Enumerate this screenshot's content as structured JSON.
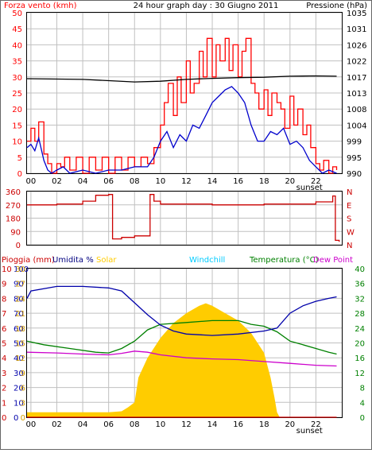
{
  "header": {
    "left_label": "Forza vento (kmh)",
    "title": "24 hour graph day : 30 Giugno 2011",
    "right_label": "Pressione (hPa)"
  },
  "lower_header": {
    "rain": "Pioggia (mm)",
    "humidity": "Umidita %",
    "solar": "Solar",
    "windchill": "Windchill",
    "temperature": "Temperatura (°C)",
    "dewpoint": "Dew Point"
  },
  "colors": {
    "wind": "#ff0000",
    "gust": "#0000cc",
    "pressure": "#000000",
    "direction": "#cc0000",
    "rain": "#cc0000",
    "humidity": "#0000aa",
    "solar": "#ffcc00",
    "windchill": "#00ccff",
    "temperature": "#008000",
    "dewpoint": "#cc00cc",
    "grid": "#c0c0c0"
  },
  "x_ticks": [
    "00",
    "02",
    "04",
    "06",
    "08",
    "10",
    "12",
    "14",
    "16",
    "18",
    "20",
    "22"
  ],
  "sunset_label": "sunset",
  "chart_data": [
    {
      "type": "line",
      "name": "wind",
      "x_range_hours": [
        -0.3,
        24.0
      ],
      "left_axis": {
        "label": "Forza vento (kmh)",
        "ticks": [
          0,
          5,
          10,
          15,
          20,
          25,
          30,
          35,
          40,
          45,
          50
        ],
        "range": [
          0,
          50
        ]
      },
      "right_axis": {
        "label": "Pressione (hPa)",
        "ticks": [
          990,
          995,
          999,
          1004,
          1008,
          1013,
          1017,
          1022,
          1026,
          1031,
          1035
        ],
        "range": [
          990,
          1035
        ]
      },
      "series": [
        {
          "name": "Forza vento (kmh)",
          "axis": "left",
          "points": [
            [
              -0.3,
              10
            ],
            [
              0,
              14
            ],
            [
              0.3,
              10
            ],
            [
              0.6,
              16
            ],
            [
              1,
              6
            ],
            [
              1.3,
              3
            ],
            [
              1.6,
              0
            ],
            [
              2,
              3
            ],
            [
              2.3,
              2
            ],
            [
              2.6,
              5
            ],
            [
              3,
              1
            ],
            [
              3.5,
              5
            ],
            [
              4,
              0
            ],
            [
              4.5,
              5
            ],
            [
              5,
              1
            ],
            [
              5.5,
              5
            ],
            [
              6,
              0
            ],
            [
              6.5,
              5
            ],
            [
              7,
              1
            ],
            [
              7.5,
              5
            ],
            [
              8,
              2
            ],
            [
              8.5,
              5
            ],
            [
              9,
              3
            ],
            [
              9.5,
              8
            ],
            [
              10,
              15
            ],
            [
              10.3,
              22
            ],
            [
              10.6,
              28
            ],
            [
              11,
              18
            ],
            [
              11.3,
              30
            ],
            [
              11.6,
              22
            ],
            [
              12,
              35
            ],
            [
              12.3,
              25
            ],
            [
              12.6,
              28
            ],
            [
              13,
              38
            ],
            [
              13.3,
              30
            ],
            [
              13.6,
              42
            ],
            [
              14,
              30
            ],
            [
              14.3,
              40
            ],
            [
              14.6,
              35
            ],
            [
              15,
              42
            ],
            [
              15.3,
              32
            ],
            [
              15.6,
              40
            ],
            [
              16,
              30
            ],
            [
              16.3,
              38
            ],
            [
              16.6,
              42
            ],
            [
              17,
              28
            ],
            [
              17.3,
              25
            ],
            [
              17.6,
              20
            ],
            [
              18,
              26
            ],
            [
              18.3,
              18
            ],
            [
              18.6,
              25
            ],
            [
              19,
              22
            ],
            [
              19.3,
              20
            ],
            [
              19.6,
              14
            ],
            [
              20,
              24
            ],
            [
              20.3,
              15
            ],
            [
              20.6,
              20
            ],
            [
              21,
              12
            ],
            [
              21.3,
              15
            ],
            [
              21.6,
              8
            ],
            [
              22,
              3
            ],
            [
              22.3,
              1
            ],
            [
              22.6,
              4
            ],
            [
              23,
              0
            ],
            [
              23.3,
              2
            ],
            [
              23.6,
              1
            ]
          ]
        },
        {
          "name": "Raffica",
          "axis": "left",
          "points": [
            [
              -0.3,
              8
            ],
            [
              0,
              9
            ],
            [
              0.3,
              7
            ],
            [
              0.6,
              11
            ],
            [
              1,
              4
            ],
            [
              1.3,
              1
            ],
            [
              1.6,
              0
            ],
            [
              2,
              1
            ],
            [
              2.5,
              2
            ],
            [
              3,
              0
            ],
            [
              4,
              1
            ],
            [
              5,
              0
            ],
            [
              6,
              1
            ],
            [
              7,
              1
            ],
            [
              8,
              2
            ],
            [
              9,
              2
            ],
            [
              9.5,
              5
            ],
            [
              10,
              10
            ],
            [
              10.5,
              13
            ],
            [
              11,
              8
            ],
            [
              11.5,
              12
            ],
            [
              12,
              10
            ],
            [
              12.5,
              15
            ],
            [
              13,
              14
            ],
            [
              13.5,
              18
            ],
            [
              14,
              22
            ],
            [
              14.5,
              24
            ],
            [
              15,
              26
            ],
            [
              15.5,
              27
            ],
            [
              16,
              25
            ],
            [
              16.5,
              22
            ],
            [
              17,
              15
            ],
            [
              17.5,
              10
            ],
            [
              18,
              10
            ],
            [
              18.5,
              13
            ],
            [
              19,
              12
            ],
            [
              19.5,
              14
            ],
            [
              20,
              9
            ],
            [
              20.5,
              10
            ],
            [
              21,
              8
            ],
            [
              21.5,
              4
            ],
            [
              22,
              2
            ],
            [
              22.5,
              0
            ],
            [
              23,
              1
            ],
            [
              23.6,
              0
            ]
          ]
        },
        {
          "name": "Pressione (hPa)",
          "axis": "right",
          "points": [
            [
              -0.3,
              1016.5
            ],
            [
              4,
              1016.3
            ],
            [
              8,
              1015.6
            ],
            [
              10,
              1015.8
            ],
            [
              12,
              1016.3
            ],
            [
              14,
              1016.6
            ],
            [
              16,
              1016.8
            ],
            [
              18,
              1016.9
            ],
            [
              20,
              1017.2
            ],
            [
              22,
              1017.3
            ],
            [
              23.6,
              1017.2
            ]
          ]
        }
      ]
    },
    {
      "type": "line",
      "name": "wind_direction",
      "left_axis": {
        "ticks": [
          0,
          90,
          180,
          270,
          360
        ],
        "range": [
          0,
          360
        ]
      },
      "right_axis": {
        "ticks": [
          "N",
          "W",
          "S",
          "E",
          "N"
        ]
      },
      "series": [
        {
          "name": "Direzione",
          "points": [
            [
              -0.3,
              270
            ],
            [
              2,
              275
            ],
            [
              4,
              295
            ],
            [
              5,
              335
            ],
            [
              6,
              340
            ],
            [
              6.3,
              40
            ],
            [
              7,
              50
            ],
            [
              8,
              60
            ],
            [
              9,
              60
            ],
            [
              9.2,
              340
            ],
            [
              9.5,
              295
            ],
            [
              10,
              275
            ],
            [
              14,
              270
            ],
            [
              18,
              275
            ],
            [
              22,
              290
            ],
            [
              23.3,
              330
            ],
            [
              23.5,
              30
            ],
            [
              23.8,
              20
            ]
          ]
        }
      ]
    },
    {
      "type": "line",
      "name": "climate",
      "axes": {
        "rain": {
          "label": "Pioggia (mm)",
          "ticks": [
            0,
            1,
            2,
            3,
            4,
            5,
            6,
            7,
            8,
            9,
            10
          ],
          "range": [
            0,
            10
          ]
        },
        "humidity": {
          "label": "Umidita %",
          "ticks": [
            0,
            10,
            20,
            30,
            40,
            50,
            60,
            70,
            80,
            90,
            100
          ],
          "range": [
            0,
            100
          ]
        },
        "solar": {
          "label": "Solar",
          "ticks": [
            0,
            3,
            6,
            9,
            12,
            15,
            18,
            21,
            24,
            27,
            30
          ],
          "range": [
            0,
            30
          ]
        },
        "temperature": {
          "label": "Temperatura (°C)",
          "ticks": [
            0,
            4,
            8,
            12,
            16,
            20,
            24,
            28,
            32,
            36,
            40
          ],
          "range": [
            0,
            40
          ]
        }
      },
      "series": [
        {
          "name": "Umidita %",
          "axis": "humidity",
          "points": [
            [
              -0.3,
              80
            ],
            [
              0,
              85
            ],
            [
              2,
              88
            ],
            [
              4,
              88
            ],
            [
              6,
              87
            ],
            [
              7,
              85
            ],
            [
              8,
              77
            ],
            [
              9,
              69
            ],
            [
              10,
              62
            ],
            [
              11,
              58
            ],
            [
              12,
              56
            ],
            [
              14,
              55
            ],
            [
              16,
              56
            ],
            [
              18,
              58
            ],
            [
              19,
              60
            ],
            [
              20,
              70
            ],
            [
              21,
              75
            ],
            [
              22,
              78
            ],
            [
              23,
              80
            ],
            [
              23.6,
              81
            ]
          ]
        },
        {
          "name": "Temperatura (°C)",
          "axis": "temperature",
          "points": [
            [
              -0.3,
              20.5
            ],
            [
              1,
              19.5
            ],
            [
              3,
              18.5
            ],
            [
              5,
              17.5
            ],
            [
              6,
              17.3
            ],
            [
              7,
              18.5
            ],
            [
              8,
              20.5
            ],
            [
              9,
              23.5
            ],
            [
              10,
              25
            ],
            [
              12,
              25.5
            ],
            [
              14,
              26
            ],
            [
              16,
              26
            ],
            [
              17,
              25
            ],
            [
              18,
              24.5
            ],
            [
              19,
              23
            ],
            [
              20,
              20.5
            ],
            [
              21,
              19.5
            ],
            [
              22,
              18.5
            ],
            [
              23,
              17.5
            ],
            [
              23.6,
              17
            ]
          ]
        },
        {
          "name": "Dew Point",
          "axis": "temperature",
          "points": [
            [
              -0.3,
              17.5
            ],
            [
              2,
              17.3
            ],
            [
              4,
              17
            ],
            [
              6,
              16.8
            ],
            [
              7,
              17.2
            ],
            [
              8,
              17.8
            ],
            [
              9,
              17.5
            ],
            [
              10,
              16.8
            ],
            [
              12,
              16
            ],
            [
              14,
              15.7
            ],
            [
              16,
              15.5
            ],
            [
              18,
              15
            ],
            [
              20,
              14.5
            ],
            [
              22,
              14
            ],
            [
              23.6,
              13.8
            ]
          ]
        },
        {
          "name": "Solar",
          "axis": "solar",
          "type": "area",
          "points": [
            [
              -0.3,
              1
            ],
            [
              6,
              1
            ],
            [
              7,
              1.2
            ],
            [
              7.5,
              2
            ],
            [
              8,
              3
            ],
            [
              8.3,
              8
            ],
            [
              9,
              12
            ],
            [
              10,
              16
            ],
            [
              11,
              19
            ],
            [
              12,
              21
            ],
            [
              13,
              22.5
            ],
            [
              13.5,
              23
            ],
            [
              14,
              22.5
            ],
            [
              15,
              21
            ],
            [
              16,
              19.5
            ],
            [
              17,
              17
            ],
            [
              18,
              13
            ],
            [
              18.5,
              8
            ],
            [
              18.8,
              4
            ],
            [
              19,
              1
            ],
            [
              19.2,
              0
            ],
            [
              23.6,
              0
            ]
          ]
        },
        {
          "name": "Pioggia (mm)",
          "axis": "rain",
          "points": [
            [
              -0.3,
              0
            ],
            [
              23.6,
              0
            ]
          ]
        }
      ]
    }
  ]
}
